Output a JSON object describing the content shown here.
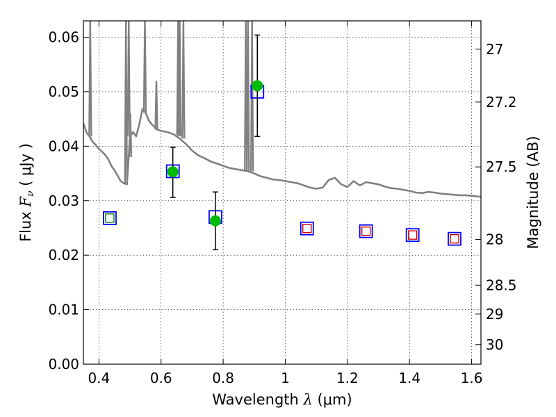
{
  "chart_data": {
    "type": "scatter",
    "title": "",
    "xlabel": "Wavelength  λ (μm)",
    "ylabel": "Flux  Fν  ( μJy )",
    "ylabel_parts": {
      "prefix": "Flux  ",
      "symbol": "F",
      "subscript": "ν",
      "suffix": "  ( μJy )"
    },
    "xlabel_parts": {
      "prefix": "Wavelength  ",
      "symbol": "λ",
      "suffix": " (μm)"
    },
    "y2label": "Magnitude (AB)",
    "xlim": [
      0.35,
      1.63
    ],
    "ylim": [
      0.0,
      0.063
    ],
    "grid": true,
    "x_ticks": [
      0.4,
      0.6,
      0.8,
      1.0,
      1.2,
      1.4,
      1.6
    ],
    "x_tick_labels": [
      "0.4",
      "0.6",
      "0.8",
      "1",
      "1.2",
      "1.4",
      "1.6"
    ],
    "y_ticks": [
      0.0,
      0.01,
      0.02,
      0.03,
      0.04,
      0.05,
      0.06
    ],
    "y_tick_labels": [
      "0.00",
      "0.01",
      "0.02",
      "0.03",
      "0.04",
      "0.05",
      "0.06"
    ],
    "y2_ticks": [
      {
        "label": "27",
        "flux": 0.0578
      },
      {
        "label": "27.2",
        "flux": 0.0481
      },
      {
        "label": "27.5",
        "flux": 0.0362
      },
      {
        "label": "28",
        "flux": 0.0229
      },
      {
        "label": "28.5",
        "flux": 0.0145
      },
      {
        "label": "29",
        "flux": 0.0092
      },
      {
        "label": "30",
        "flux": 0.0036
      }
    ],
    "series": [
      {
        "kind": "line",
        "color": "#808080",
        "points": [
          [
            0.35,
            0.0442
          ],
          [
            0.36,
            0.0425
          ],
          [
            0.37,
            0.0418
          ],
          [
            0.38,
            0.0408
          ],
          [
            0.39,
            0.0402
          ],
          [
            0.4,
            0.0395
          ],
          [
            0.41,
            0.039
          ],
          [
            0.42,
            0.0384
          ],
          [
            0.43,
            0.0376
          ],
          [
            0.44,
            0.0364
          ],
          [
            0.45,
            0.0356
          ],
          [
            0.46,
            0.0346
          ],
          [
            0.47,
            0.0336
          ],
          [
            0.48,
            0.0332
          ],
          [
            0.49,
            0.033
          ],
          [
            0.5,
            0.0418
          ],
          [
            0.51,
            0.0426
          ],
          [
            0.52,
            0.0418
          ],
          [
            0.53,
            0.044
          ],
          [
            0.54,
            0.0468
          ],
          [
            0.55,
            0.0462
          ],
          [
            0.56,
            0.0448
          ],
          [
            0.57,
            0.044
          ],
          [
            0.58,
            0.0435
          ],
          [
            0.59,
            0.043
          ],
          [
            0.6,
            0.0428
          ],
          [
            0.62,
            0.0426
          ],
          [
            0.64,
            0.0422
          ],
          [
            0.66,
            0.0414
          ],
          [
            0.68,
            0.0404
          ],
          [
            0.7,
            0.0392
          ],
          [
            0.72,
            0.0383
          ],
          [
            0.74,
            0.0378
          ],
          [
            0.76,
            0.0372
          ],
          [
            0.78,
            0.0368
          ],
          [
            0.8,
            0.0364
          ],
          [
            0.82,
            0.036
          ],
          [
            0.84,
            0.0358
          ],
          [
            0.86,
            0.0356
          ],
          [
            0.88,
            0.0354
          ],
          [
            0.9,
            0.035
          ],
          [
            0.92,
            0.0345
          ],
          [
            0.94,
            0.0342
          ],
          [
            0.96,
            0.0339
          ],
          [
            0.98,
            0.0338
          ],
          [
            1.0,
            0.0336
          ],
          [
            1.02,
            0.0334
          ],
          [
            1.04,
            0.0332
          ],
          [
            1.06,
            0.0328
          ],
          [
            1.08,
            0.0324
          ],
          [
            1.1,
            0.0322
          ],
          [
            1.12,
            0.0324
          ],
          [
            1.14,
            0.0338
          ],
          [
            1.16,
            0.0342
          ],
          [
            1.18,
            0.033
          ],
          [
            1.2,
            0.0325
          ],
          [
            1.22,
            0.0336
          ],
          [
            1.24,
            0.0328
          ],
          [
            1.26,
            0.0334
          ],
          [
            1.28,
            0.0332
          ],
          [
            1.3,
            0.033
          ],
          [
            1.32,
            0.0326
          ],
          [
            1.34,
            0.0323
          ],
          [
            1.36,
            0.0322
          ],
          [
            1.38,
            0.032
          ],
          [
            1.4,
            0.0318
          ],
          [
            1.42,
            0.0315
          ],
          [
            1.44,
            0.0314
          ],
          [
            1.46,
            0.0316
          ],
          [
            1.48,
            0.0315
          ],
          [
            1.5,
            0.0313
          ],
          [
            1.52,
            0.0312
          ],
          [
            1.54,
            0.0311
          ],
          [
            1.56,
            0.031
          ],
          [
            1.58,
            0.031
          ],
          [
            1.6,
            0.0309
          ],
          [
            1.63,
            0.0307
          ]
        ]
      },
      {
        "kind": "line",
        "note": "emission spikes",
        "color": "#808080",
        "spikes": [
          {
            "x": 0.372,
            "base": 0.0418,
            "top": 0.063
          },
          {
            "x": 0.487,
            "base": 0.033,
            "top": 0.063
          },
          {
            "x": 0.496,
            "base": 0.0418,
            "top": 0.063
          },
          {
            "x": 0.501,
            "base": 0.038,
            "top": 0.046
          },
          {
            "x": 0.548,
            "base": 0.0462,
            "top": 0.063
          },
          {
            "x": 0.585,
            "base": 0.043,
            "top": 0.052
          },
          {
            "x": 0.655,
            "base": 0.042,
            "top": 0.063
          },
          {
            "x": 0.66,
            "base": 0.0418,
            "top": 0.063
          },
          {
            "x": 0.672,
            "base": 0.0414,
            "top": 0.063
          },
          {
            "x": 0.873,
            "base": 0.0355,
            "top": 0.063
          },
          {
            "x": 0.88,
            "base": 0.0355,
            "top": 0.063
          },
          {
            "x": 0.893,
            "base": 0.0354,
            "top": 0.063
          }
        ]
      },
      {
        "kind": "markers",
        "name": "",
        "marker": "open-square",
        "color": "#0000ff",
        "x": [
          0.435,
          0.638,
          0.775,
          0.91,
          1.07,
          1.26,
          1.41,
          1.545
        ],
        "y": [
          0.0268,
          0.0354,
          0.027,
          0.05,
          0.0249,
          0.0244,
          0.0237,
          0.023
        ]
      },
      {
        "kind": "markers",
        "name": "",
        "marker": "open-square-small",
        "color": "#008000",
        "x": [
          0.435
        ],
        "y": [
          0.0268
        ]
      },
      {
        "kind": "markers",
        "name": "",
        "marker": "open-square-small",
        "color": "#cc0000",
        "x": [
          1.07,
          1.26,
          1.41,
          1.545
        ],
        "y": [
          0.0249,
          0.0244,
          0.0237,
          0.023
        ]
      },
      {
        "kind": "errorbar",
        "name": "",
        "marker": "filled-circle",
        "color": "#00bb00",
        "x": [
          0.638,
          0.775,
          0.91
        ],
        "y": [
          0.0353,
          0.0263,
          0.0511
        ],
        "yerr_low": [
          0.0306,
          0.021,
          0.0418
        ],
        "yerr_high": [
          0.0398,
          0.0316,
          0.0604
        ]
      }
    ]
  }
}
